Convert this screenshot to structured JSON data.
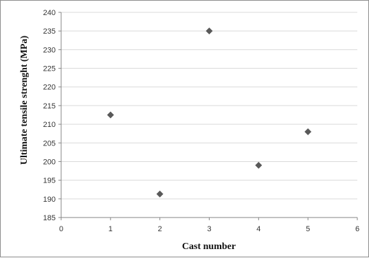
{
  "chart_data": {
    "type": "scatter",
    "title": "",
    "xlabel": "Cast number",
    "ylabel": "Ultimate tensile strenght (MPa)",
    "xlim": [
      0,
      6
    ],
    "ylim": [
      185,
      240
    ],
    "x_ticks": [
      "0",
      "1",
      "2",
      "3",
      "4",
      "5",
      "6"
    ],
    "y_ticks": [
      "185",
      "190",
      "195",
      "200",
      "205",
      "210",
      "215",
      "220",
      "225",
      "230",
      "235",
      "240"
    ],
    "grid": "horizontal",
    "legend": "none",
    "marker": "diamond",
    "marker_color": "#595959",
    "series": [
      {
        "points": [
          {
            "x": 1,
            "y": 212.5
          },
          {
            "x": 2,
            "y": 191.3
          },
          {
            "x": 3,
            "y": 235.0
          },
          {
            "x": 4,
            "y": 199.0
          },
          {
            "x": 5,
            "y": 208.0
          }
        ]
      }
    ]
  }
}
